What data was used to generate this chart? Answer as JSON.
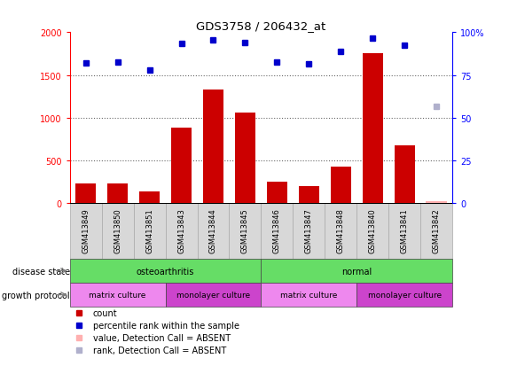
{
  "title": "GDS3758 / 206432_at",
  "samples": [
    "GSM413849",
    "GSM413850",
    "GSM413851",
    "GSM413843",
    "GSM413844",
    "GSM413845",
    "GSM413846",
    "GSM413847",
    "GSM413848",
    "GSM413840",
    "GSM413841",
    "GSM413842"
  ],
  "bar_values": [
    230,
    235,
    140,
    880,
    1330,
    1060,
    250,
    205,
    430,
    1750,
    680,
    20
  ],
  "bar_absent": [
    false,
    false,
    false,
    false,
    false,
    false,
    false,
    false,
    false,
    false,
    false,
    true
  ],
  "percentile_values": [
    82,
    82.5,
    78,
    93.5,
    95.5,
    94,
    82.5,
    81.5,
    88.5,
    96.5,
    92.5,
    56.5
  ],
  "percentile_absent": [
    false,
    false,
    false,
    false,
    false,
    false,
    false,
    false,
    false,
    false,
    false,
    true
  ],
  "bar_color": "#cc0000",
  "bar_absent_color": "#ffb0b0",
  "percentile_color": "#0000cc",
  "percentile_absent_color": "#b0b0cc",
  "ylim_left": [
    0,
    2000
  ],
  "ylim_right": [
    0,
    100
  ],
  "yticks_left": [
    0,
    500,
    1000,
    1500,
    2000
  ],
  "yticks_right": [
    0,
    25,
    50,
    75,
    100
  ],
  "ytick_labels_right": [
    "0",
    "25",
    "50",
    "75",
    "100%"
  ],
  "disease_state_groups": [
    {
      "label": "osteoarthritis",
      "start": 0,
      "end": 6,
      "color": "#66dd66"
    },
    {
      "label": "normal",
      "start": 6,
      "end": 12,
      "color": "#66dd66"
    }
  ],
  "growth_protocol_groups": [
    {
      "label": "matrix culture",
      "start": 0,
      "end": 3,
      "color": "#ee88ee"
    },
    {
      "label": "monolayer culture",
      "start": 3,
      "end": 6,
      "color": "#cc44cc"
    },
    {
      "label": "matrix culture",
      "start": 6,
      "end": 9,
      "color": "#ee88ee"
    },
    {
      "label": "monolayer culture",
      "start": 9,
      "end": 12,
      "color": "#cc44cc"
    }
  ],
  "disease_state_label": "disease state",
  "growth_protocol_label": "growth protocol",
  "legend_items": [
    {
      "label": "count",
      "color": "#cc0000"
    },
    {
      "label": "percentile rank within the sample",
      "color": "#0000cc"
    },
    {
      "label": "value, Detection Call = ABSENT",
      "color": "#ffb0b0"
    },
    {
      "label": "rank, Detection Call = ABSENT",
      "color": "#b0b0cc"
    }
  ],
  "sample_box_color": "#d8d8d8",
  "sample_box_edge": "#aaaaaa"
}
